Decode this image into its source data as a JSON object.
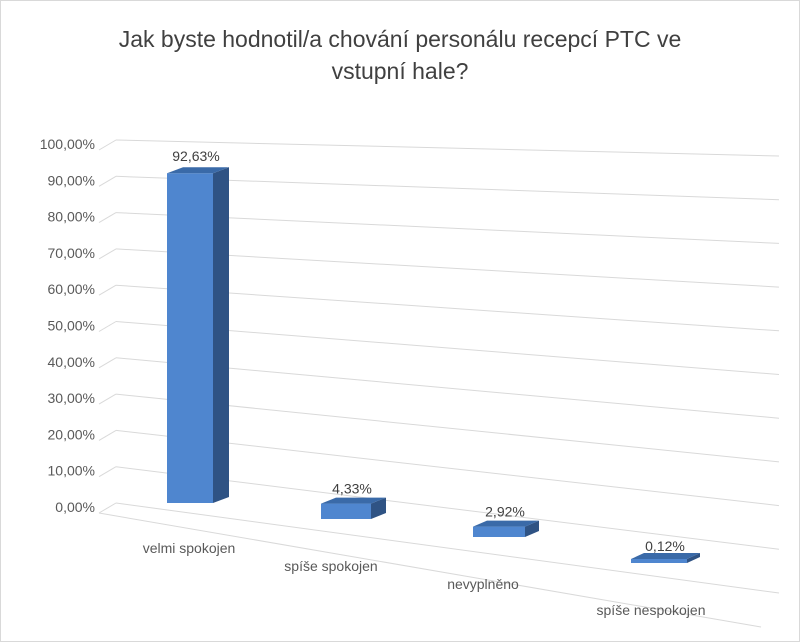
{
  "chart_data": {
    "type": "bar",
    "title": "Jak byste hodnotil/a chování personálu recepcí PTC ve vstupní hale?",
    "categories": [
      "velmi spokojen",
      "spíše spokojen",
      "nevyplněno",
      "spíše nespokojen"
    ],
    "values": [
      92.63,
      4.33,
      2.92,
      0.12
    ],
    "data_labels": [
      "92,63%",
      "4,33%",
      "2,92%",
      "0,12%"
    ],
    "yticks": [
      "0,00%",
      "10,00%",
      "20,00%",
      "30,00%",
      "40,00%",
      "50,00%",
      "60,00%",
      "70,00%",
      "80,00%",
      "90,00%",
      "100,00%"
    ],
    "ylim": [
      0,
      100
    ],
    "grid": true,
    "legend": "none",
    "style": "3d-perspective",
    "colors": {
      "bar_front": "#4f86cf",
      "bar_side": "#2f5384",
      "bar_top": "#3a6aa8",
      "grid": "#d9d9d9",
      "text": "#595959"
    }
  }
}
